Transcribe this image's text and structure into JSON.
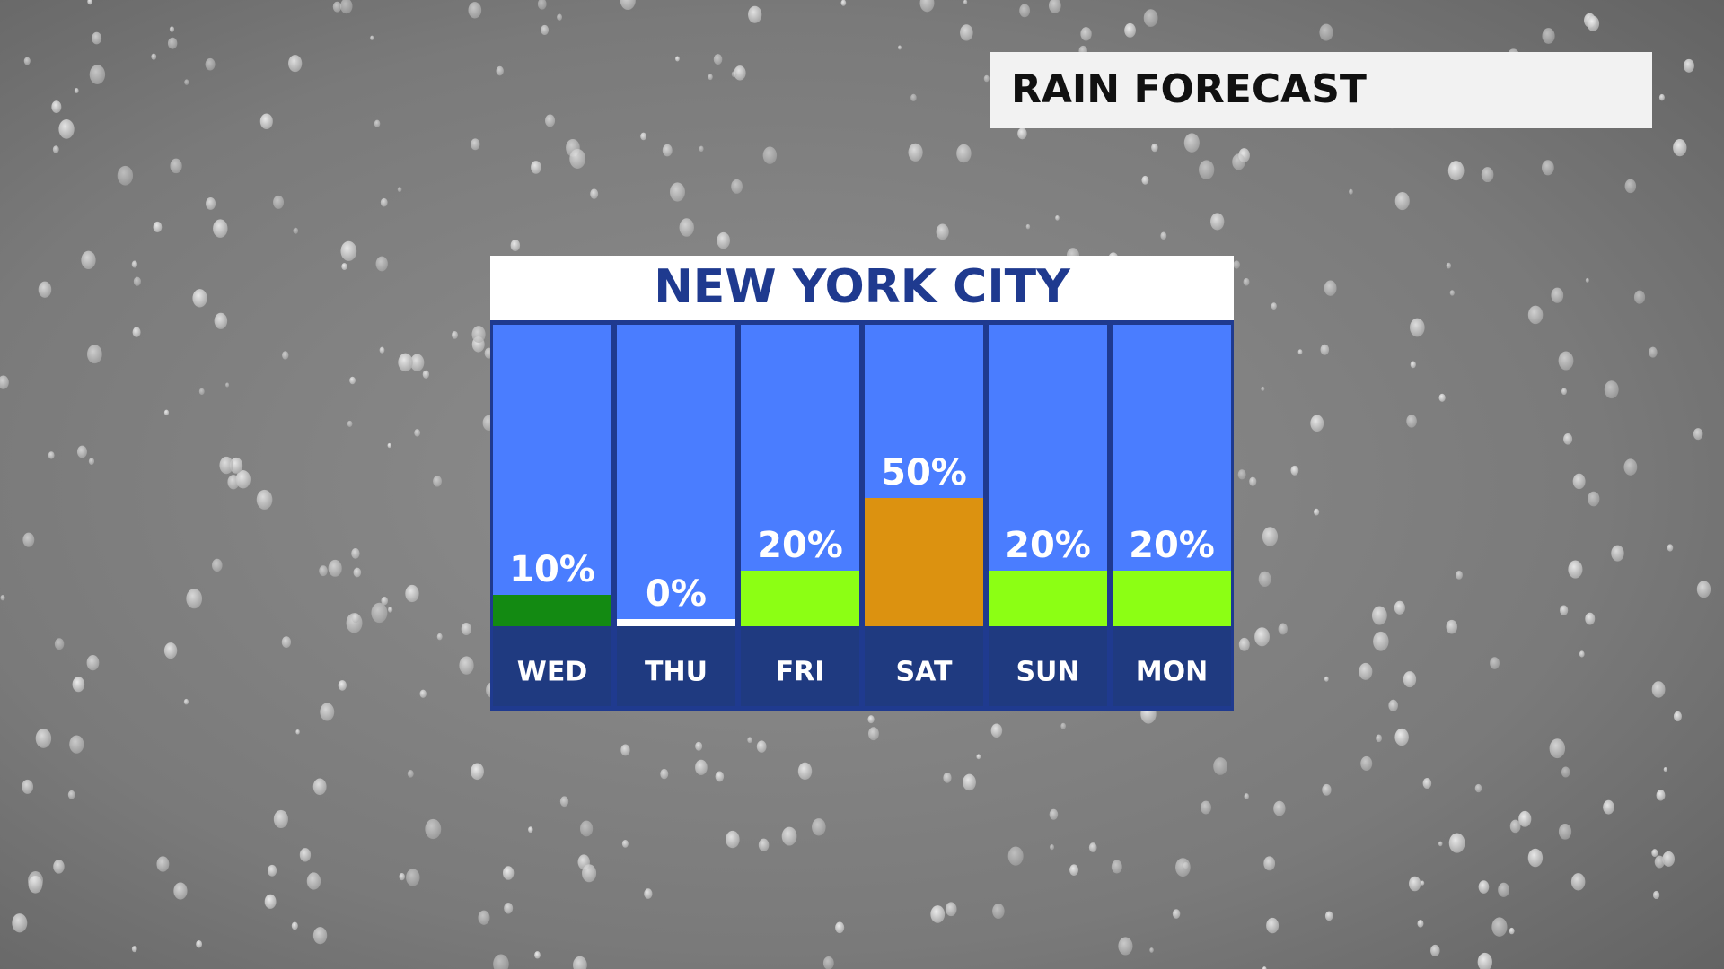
{
  "header": {
    "title": "RAIN FORECAST"
  },
  "chart_data": {
    "type": "bar",
    "title": "NEW YORK CITY",
    "categories": [
      "WED",
      "THU",
      "FRI",
      "SAT",
      "SUN",
      "MON"
    ],
    "values": [
      10,
      0,
      20,
      50,
      20,
      20
    ],
    "value_labels": [
      "10%",
      "0%",
      "20%",
      "50%",
      "20%",
      "20%"
    ],
    "colors": [
      "#138a12",
      "#ffffff",
      "#8cff14",
      "#dc9210",
      "#8cff14",
      "#8cff14"
    ]
  }
}
